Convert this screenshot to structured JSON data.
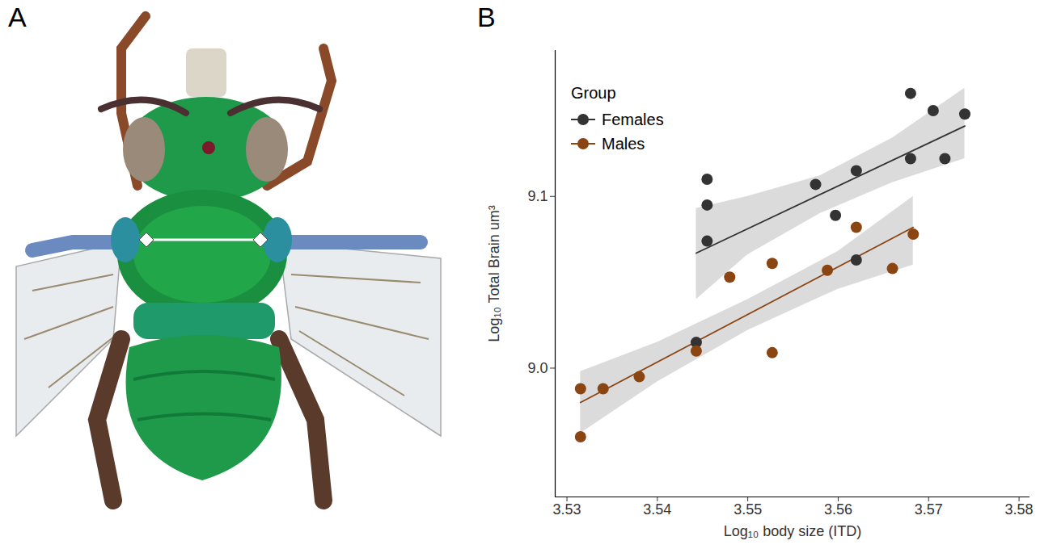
{
  "panel_labels": [
    "A",
    "B"
  ],
  "chart_data": {
    "type": "scatter",
    "x_label": "Log₁₀ body size (ITD)",
    "y_label": "Log₁₀ Total Brain um³",
    "xlim": [
      3.5287,
      3.5812
    ],
    "xticks": [
      3.53,
      3.54,
      3.55,
      3.56,
      3.57,
      3.58
    ],
    "ylim": [
      8.925,
      9.185
    ],
    "yticks": [
      {
        "value": 9.0,
        "label": "9.0"
      },
      {
        "value": 9.1,
        "label": "9.1"
      }
    ],
    "grid": false,
    "legend": "top-left",
    "legend_title": "Group",
    "series": [
      {
        "name": "Females",
        "color": "#333333",
        "marker": "circle",
        "x": [
          3.5455,
          3.5455,
          3.5455,
          3.5443,
          3.5575,
          3.5597,
          3.562,
          3.562,
          3.568,
          3.568,
          3.5705,
          3.5718,
          3.574
        ],
        "values": [
          9.11,
          9.095,
          9.074,
          9.015,
          9.107,
          9.089,
          9.115,
          9.063,
          9.16,
          9.122,
          9.15,
          9.122,
          9.148
        ],
        "fit": {
          "x": [
            3.5443,
            3.574
          ],
          "y": [
            9.067,
            9.141
          ]
        },
        "band": {
          "x": [
            3.5443,
            3.55,
            3.558,
            3.566,
            3.574
          ],
          "lower": [
            9.04,
            9.066,
            9.09,
            9.108,
            9.122
          ],
          "upper": [
            9.093,
            9.1,
            9.112,
            9.134,
            9.163
          ]
        }
      },
      {
        "name": "Males",
        "color": "#8b4513",
        "marker": "circle",
        "x": [
          3.5315,
          3.5315,
          3.534,
          3.538,
          3.5443,
          3.548,
          3.5527,
          3.5527,
          3.5588,
          3.562,
          3.566,
          3.5683
        ],
        "values": [
          8.988,
          8.96,
          8.988,
          8.995,
          9.01,
          9.053,
          9.061,
          9.009,
          9.057,
          9.082,
          9.058,
          9.078
        ],
        "fit": {
          "x": [
            3.5315,
            3.5683
          ],
          "y": [
            8.98,
            9.082
          ]
        },
        "band": {
          "x": [
            3.5315,
            3.54,
            3.55,
            3.56,
            3.5683
          ],
          "lower": [
            8.962,
            8.992,
            9.022,
            9.046,
            9.06
          ],
          "upper": [
            8.998,
            9.015,
            9.04,
            9.068,
            9.1
          ]
        }
      }
    ]
  }
}
